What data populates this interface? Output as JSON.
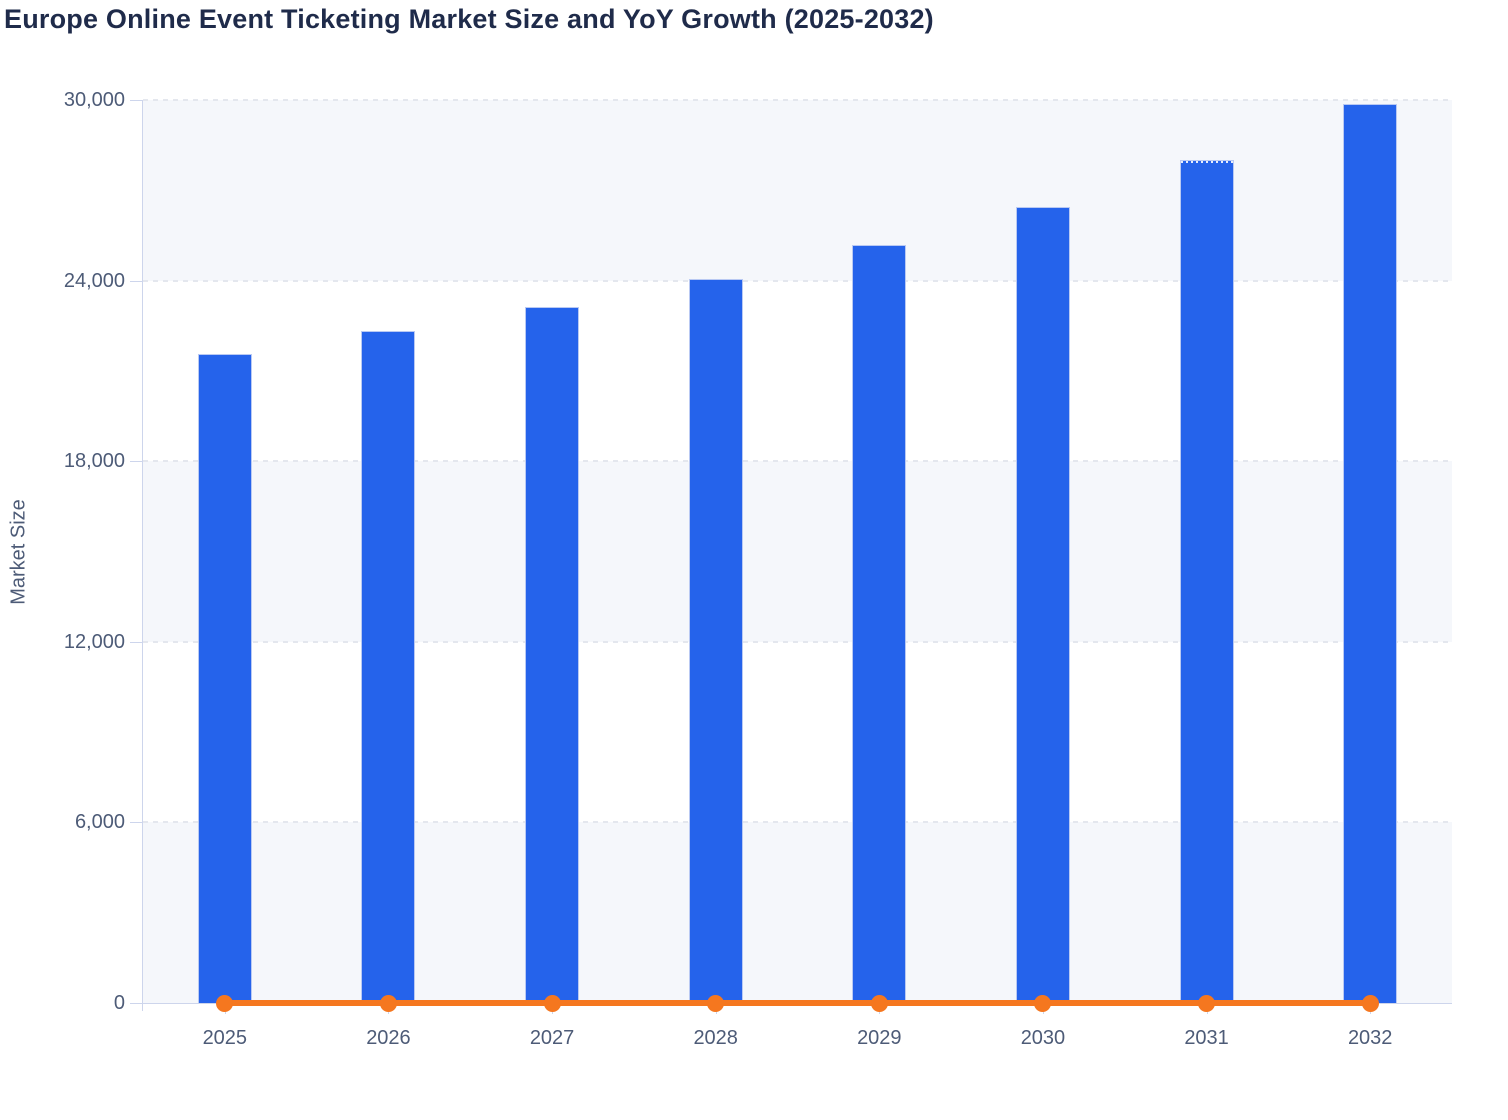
{
  "title": "Europe Online Event Ticketing Market Size and YoY Growth (2025-2032)",
  "y_axis": {
    "label": "Market Size",
    "ticks": [
      "30,000",
      "24,000",
      "18,000",
      "12,000",
      "6,000",
      "0"
    ]
  },
  "x_axis": {
    "ticks": [
      "2025",
      "2026",
      "2027",
      "2028",
      "2029",
      "2030",
      "2031",
      "2032"
    ]
  },
  "chart_data": {
    "type": "combo",
    "categories": [
      "2025",
      "2026",
      "2027",
      "2028",
      "2029",
      "2030",
      "2031",
      "2032"
    ],
    "series": [
      {
        "name": "Market Size",
        "type": "bar",
        "color": "#2563eb",
        "values": [
          21560,
          22320,
          23120,
          24050,
          25180,
          26445,
          28005,
          29865
        ]
      },
      {
        "name": "YoY Growth",
        "type": "line",
        "color": "#f5771f",
        "values": [
          3.4,
          3.5,
          3.6,
          4.0,
          4.7,
          5.0,
          5.9,
          6.6
        ],
        "note": "plots flat along the zero baseline at this axis scale"
      }
    ],
    "title": "Europe Online Event Ticketing Market Size and YoY Growth (2025-2032)",
    "xlabel": "",
    "ylabel": "Market Size",
    "ylim": [
      0,
      30000
    ],
    "ytick_step": 6000,
    "grid": "horizontal dashed",
    "plot_band_fills": [
      "#f5f7fb",
      "#ffffff"
    ],
    "legend": "none",
    "annotations": {
      "dotted_bar_top": "2031"
    }
  },
  "colors": {
    "bar": "#2563eb",
    "line": "#f5771f",
    "title_text": "#1f2b4a",
    "axis_text": "#4d5b77",
    "axis_line": "#cdd5ec",
    "gridline": "#e4e7ee",
    "band_light": "#f5f7fb"
  }
}
